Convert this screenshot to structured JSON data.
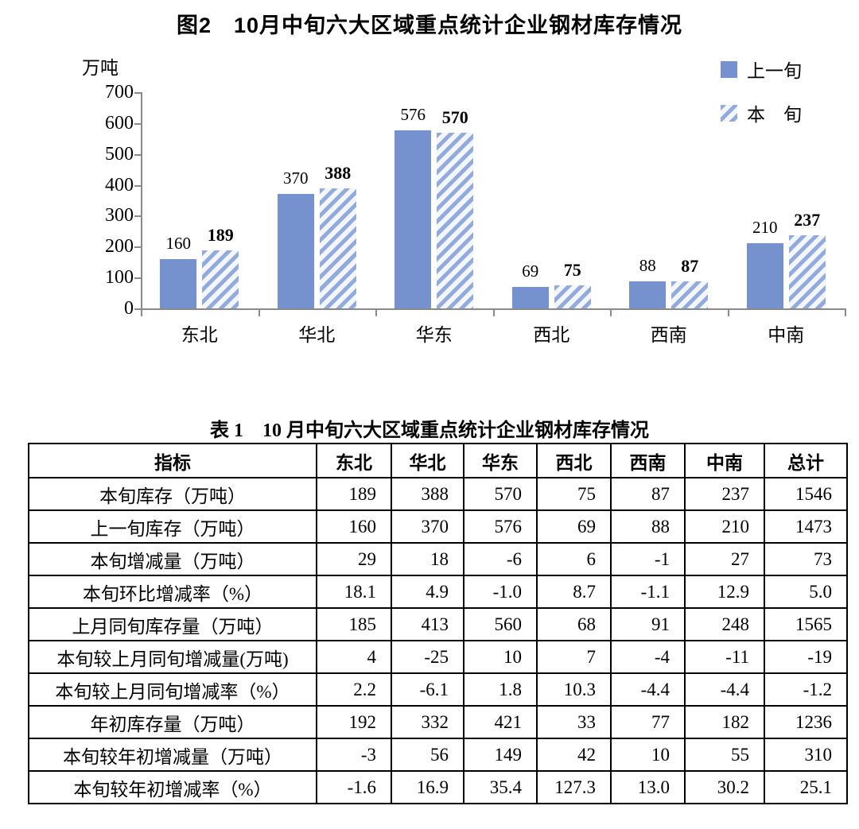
{
  "figure": {
    "title": "图2　10月中旬六大区域重点统计企业钢材库存情况",
    "unit_label": "万吨",
    "legend": [
      {
        "label": "上一旬",
        "style": "solid"
      },
      {
        "label": "本　旬",
        "style": "hatch"
      }
    ]
  },
  "chart_data": {
    "type": "bar",
    "title": "图2　10月中旬六大区域重点统计企业钢材库存情况",
    "ylabel": "万吨",
    "ylim": [
      0,
      700
    ],
    "ytick_step": 100,
    "grid": false,
    "legend_position": "top-right",
    "categories": [
      "东北",
      "华北",
      "华东",
      "西北",
      "西南",
      "中南"
    ],
    "series": [
      {
        "name": "上一旬",
        "style": "solid",
        "color": "#7591CE",
        "values": [
          160,
          370,
          576,
          69,
          88,
          210
        ]
      },
      {
        "name": "本旬",
        "style": "hatch",
        "color": "#92ABDC",
        "hatch_bg": "#F3F6FB",
        "values": [
          189,
          388,
          570,
          75,
          87,
          237
        ]
      }
    ],
    "axis_color": "#8a8a8a"
  },
  "table": {
    "title": "表 1　10 月中旬六大区域重点统计企业钢材库存情况",
    "columns": [
      "指标",
      "东北",
      "华北",
      "华东",
      "西北",
      "西南",
      "中南",
      "总计"
    ],
    "rows": [
      {
        "label": "本旬库存（万吨）",
        "values": [
          "189",
          "388",
          "570",
          "75",
          "87",
          "237",
          "1546"
        ]
      },
      {
        "label": "上一旬库存（万吨）",
        "values": [
          "160",
          "370",
          "576",
          "69",
          "88",
          "210",
          "1473"
        ]
      },
      {
        "label": "本旬增减量（万吨）",
        "values": [
          "29",
          "18",
          "-6",
          "6",
          "-1",
          "27",
          "73"
        ]
      },
      {
        "label": "本旬环比增减率（%）",
        "values": [
          "18.1",
          "4.9",
          "-1.0",
          "8.7",
          "-1.1",
          "12.9",
          "5.0"
        ]
      },
      {
        "label": "上月同旬库存量（万吨）",
        "values": [
          "185",
          "413",
          "560",
          "68",
          "91",
          "248",
          "1565"
        ]
      },
      {
        "label": "本旬较上月同旬增减量(万吨)",
        "values": [
          "4",
          "-25",
          "10",
          "7",
          "-4",
          "-11",
          "-19"
        ]
      },
      {
        "label": "本旬较上月同旬增减率（%）",
        "values": [
          "2.2",
          "-6.1",
          "1.8",
          "10.3",
          "-4.4",
          "-4.4",
          "-1.2"
        ]
      },
      {
        "label": "年初库存量（万吨）",
        "values": [
          "192",
          "332",
          "421",
          "33",
          "77",
          "182",
          "1236"
        ]
      },
      {
        "label": "本旬较年初增减量（万吨）",
        "values": [
          "-3",
          "56",
          "149",
          "42",
          "10",
          "55",
          "310"
        ]
      },
      {
        "label": "本旬较年初增减率（%）",
        "values": [
          "-1.6",
          "16.9",
          "35.4",
          "127.3",
          "13.0",
          "30.2",
          "25.1"
        ]
      }
    ]
  }
}
